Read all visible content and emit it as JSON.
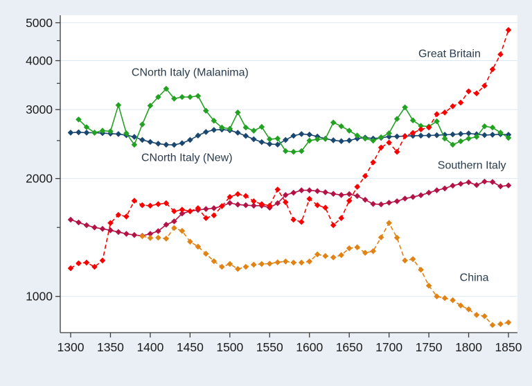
{
  "figure": {
    "title": "",
    "kind": "stata-style line chart, logarithmic y axis"
  },
  "colors": {
    "background": "#e9eff5",
    "plot_background": "#ffffff",
    "gridline": "#dde9f2",
    "axis": "#3a3a3a",
    "tick_label": "#1c1c1c",
    "annotation_text": "#2a3b4d"
  },
  "chart_data": {
    "type": "line",
    "title": "",
    "xlabel": "",
    "ylabel": "",
    "y_scale": "log",
    "xlim": [
      1287,
      1861
    ],
    "ylim": [
      808,
      5220
    ],
    "x_ticks": [
      1300,
      1350,
      1400,
      1450,
      1500,
      1550,
      1600,
      1650,
      1700,
      1750,
      1800,
      1850
    ],
    "y_ticks_major": [
      1000,
      2000,
      3000,
      4000,
      5000
    ],
    "y_ticks_minor": [
      1500,
      2500,
      3500,
      4500
    ],
    "grid": "horizontal major gridlines only",
    "legend_position": "inline text annotations",
    "annotations": [
      {
        "text": "CNorth Italy (Malanima)",
        "x": 1450,
        "y": 3740
      },
      {
        "text": "CNorth Italy (New)",
        "x": 1446,
        "y": 2265
      },
      {
        "text": "Great Britain",
        "x": 1776,
        "y": 4175
      },
      {
        "text": "Southern Italy",
        "x": 1804,
        "y": 2168
      },
      {
        "text": "China",
        "x": 1807,
        "y": 1120
      }
    ],
    "series": [
      {
        "name": "CNorth Italy (New)",
        "color": "#1a476f",
        "line_style": "solid",
        "marker": "diamond",
        "years": [
          1300,
          1310,
          1320,
          1330,
          1340,
          1350,
          1360,
          1370,
          1380,
          1390,
          1400,
          1410,
          1420,
          1430,
          1440,
          1450,
          1460,
          1470,
          1480,
          1490,
          1500,
          1510,
          1520,
          1530,
          1540,
          1550,
          1560,
          1570,
          1580,
          1590,
          1600,
          1610,
          1620,
          1630,
          1640,
          1650,
          1660,
          1670,
          1680,
          1690,
          1700,
          1710,
          1720,
          1730,
          1740,
          1750,
          1760,
          1770,
          1780,
          1790,
          1800,
          1810,
          1820,
          1830,
          1840,
          1850
        ],
        "values": [
          2620,
          2625,
          2620,
          2618,
          2612,
          2605,
          2598,
          2580,
          2555,
          2510,
          2480,
          2455,
          2440,
          2438,
          2462,
          2510,
          2575,
          2630,
          2662,
          2668,
          2655,
          2618,
          2570,
          2520,
          2478,
          2450,
          2442,
          2510,
          2572,
          2598,
          2590,
          2560,
          2528,
          2505,
          2492,
          2502,
          2530,
          2545,
          2530,
          2542,
          2558,
          2562,
          2568,
          2572,
          2574,
          2576,
          2580,
          2588,
          2592,
          2600,
          2608,
          2595,
          2582,
          2588,
          2595,
          2588
        ]
      },
      {
        "name": "CNorth Italy (Malanima)",
        "color": "#23a123",
        "line_style": "solid",
        "marker": "diamond",
        "years": [
          1310,
          1320,
          1330,
          1340,
          1350,
          1360,
          1370,
          1380,
          1390,
          1400,
          1410,
          1420,
          1430,
          1440,
          1450,
          1460,
          1470,
          1480,
          1490,
          1500,
          1510,
          1520,
          1530,
          1540,
          1550,
          1560,
          1570,
          1580,
          1590,
          1600,
          1610,
          1620,
          1630,
          1640,
          1650,
          1660,
          1670,
          1680,
          1690,
          1700,
          1710,
          1720,
          1730,
          1740,
          1750,
          1760,
          1770,
          1780,
          1790,
          1800,
          1810,
          1820,
          1830,
          1840,
          1850
        ],
        "values": [
          2830,
          2705,
          2620,
          2650,
          2640,
          3080,
          2610,
          2440,
          2750,
          3070,
          3230,
          3390,
          3200,
          3230,
          3230,
          3250,
          2980,
          2810,
          2700,
          2680,
          2950,
          2700,
          2650,
          2710,
          2520,
          2530,
          2350,
          2340,
          2350,
          2500,
          2520,
          2525,
          2780,
          2720,
          2650,
          2575,
          2530,
          2500,
          2550,
          2610,
          2840,
          3040,
          2815,
          2725,
          2715,
          2800,
          2530,
          2440,
          2490,
          2530,
          2555,
          2720,
          2700,
          2620,
          2540
        ]
      },
      {
        "name": "Southern Italy",
        "color": "#b31245",
        "line_style": "solid",
        "marker": "diamond",
        "years": [
          1300,
          1310,
          1320,
          1330,
          1340,
          1350,
          1360,
          1370,
          1380,
          1390,
          1400,
          1410,
          1420,
          1430,
          1440,
          1450,
          1460,
          1470,
          1480,
          1490,
          1500,
          1510,
          1520,
          1530,
          1540,
          1550,
          1560,
          1570,
          1580,
          1590,
          1600,
          1610,
          1620,
          1630,
          1640,
          1650,
          1660,
          1670,
          1680,
          1690,
          1700,
          1710,
          1720,
          1730,
          1740,
          1750,
          1760,
          1770,
          1780,
          1790,
          1800,
          1810,
          1820,
          1830,
          1840,
          1850
        ],
        "values": [
          1570,
          1545,
          1520,
          1500,
          1488,
          1475,
          1460,
          1445,
          1435,
          1428,
          1445,
          1468,
          1525,
          1555,
          1628,
          1650,
          1662,
          1672,
          1680,
          1700,
          1732,
          1716,
          1710,
          1705,
          1705,
          1685,
          1730,
          1815,
          1840,
          1866,
          1866,
          1858,
          1845,
          1828,
          1815,
          1825,
          1805,
          1765,
          1722,
          1718,
          1735,
          1750,
          1778,
          1795,
          1813,
          1840,
          1866,
          1887,
          1918,
          1938,
          1957,
          1925,
          1965,
          1960,
          1910,
          1920
        ]
      },
      {
        "name": "China",
        "color": "#e08214",
        "line_style": "dashed",
        "marker": "diamond",
        "years": [
          1390,
          1400,
          1410,
          1420,
          1430,
          1440,
          1450,
          1460,
          1470,
          1480,
          1490,
          1500,
          1510,
          1520,
          1530,
          1540,
          1550,
          1560,
          1570,
          1580,
          1590,
          1600,
          1610,
          1620,
          1630,
          1640,
          1650,
          1660,
          1670,
          1680,
          1690,
          1700,
          1710,
          1720,
          1730,
          1740,
          1750,
          1760,
          1770,
          1780,
          1790,
          1800,
          1810,
          1820,
          1830,
          1840,
          1850
        ],
        "values": [
          1425,
          1410,
          1412,
          1405,
          1495,
          1470,
          1380,
          1340,
          1285,
          1230,
          1190,
          1210,
          1175,
          1190,
          1205,
          1210,
          1212,
          1222,
          1228,
          1220,
          1220,
          1228,
          1280,
          1268,
          1258,
          1275,
          1327,
          1335,
          1292,
          1305,
          1415,
          1540,
          1412,
          1235,
          1245,
          1170,
          1065,
          1000,
          990,
          978,
          948,
          927,
          897,
          890,
          845,
          850,
          858
        ]
      },
      {
        "name": "Great Britain",
        "color": "#f80000",
        "line_style": "dashed",
        "marker": "diamond",
        "years": [
          1300,
          1310,
          1320,
          1330,
          1340,
          1350,
          1360,
          1370,
          1380,
          1390,
          1400,
          1410,
          1420,
          1430,
          1440,
          1450,
          1460,
          1470,
          1480,
          1490,
          1500,
          1510,
          1520,
          1530,
          1540,
          1550,
          1560,
          1570,
          1580,
          1590,
          1600,
          1610,
          1620,
          1630,
          1640,
          1650,
          1660,
          1670,
          1680,
          1690,
          1700,
          1710,
          1720,
          1730,
          1740,
          1750,
          1760,
          1770,
          1780,
          1790,
          1800,
          1810,
          1820,
          1830,
          1840,
          1850
        ],
        "values": [
          1180,
          1215,
          1220,
          1190,
          1235,
          1540,
          1615,
          1600,
          1755,
          1710,
          1705,
          1720,
          1730,
          1650,
          1665,
          1650,
          1680,
          1585,
          1610,
          1700,
          1795,
          1825,
          1805,
          1750,
          1720,
          1705,
          1875,
          1740,
          1570,
          1550,
          1775,
          1710,
          1685,
          1520,
          1585,
          1755,
          1905,
          2030,
          2200,
          2400,
          2470,
          2340,
          2565,
          2615,
          2670,
          2700,
          2920,
          2950,
          3060,
          3125,
          3340,
          3300,
          3450,
          3800,
          4150,
          4790
        ]
      }
    ]
  }
}
